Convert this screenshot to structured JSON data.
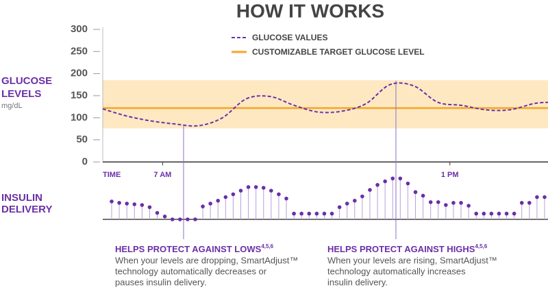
{
  "title": "HOW IT WORKS",
  "chart_data": [
    {
      "type": "line",
      "y_label": [
        "GLUCOSE",
        "LEVELS"
      ],
      "y_unit": "mg/dL",
      "x_label": "TIME",
      "x": [
        5.75,
        6.25,
        6.75,
        7.25,
        7.75,
        8.25,
        8.75,
        9.25,
        9.75,
        10.25,
        10.75,
        11.25,
        11.75,
        12.25,
        12.75,
        13.25,
        13.75,
        14.25,
        14.75,
        15.05
      ],
      "series": [
        {
          "name": "GLUCOSE VALUES",
          "color": "#6a2fa6",
          "values": [
            120,
            104,
            93,
            86,
            82,
            100,
            143,
            148,
            128,
            113,
            115,
            132,
            175,
            172,
            135,
            128,
            118,
            118,
            132,
            135
          ]
        }
      ],
      "target": {
        "name": "CUSTOMIZABLE TARGET GLUCOSE LEVEL",
        "color": "#f5a623",
        "value": 122
      },
      "target_range": {
        "color": "#fde8c2",
        "values": [
          76,
          185
        ]
      },
      "xlim": [
        5.75,
        15.05
      ],
      "xticks": [
        {
          "value": 7,
          "label": "7 AM"
        },
        {
          "value": 13,
          "label": "1 PM"
        }
      ],
      "ylim": [
        0,
        300
      ],
      "yticks": [
        0,
        50,
        100,
        150,
        200,
        250,
        300
      ]
    },
    {
      "type": "lollipop",
      "y_label": [
        "INSULIN",
        "DELIVERY"
      ],
      "color": "#6a2fa6",
      "ylim": [
        0,
        60
      ],
      "values": [
        25,
        23,
        22,
        21,
        20,
        17,
        9,
        4,
        0,
        0,
        0,
        0,
        18,
        22,
        26,
        31,
        35,
        40,
        45,
        45,
        44,
        40,
        35,
        29,
        8,
        8,
        8,
        8,
        8,
        8,
        17,
        22,
        26,
        32,
        41,
        48,
        53,
        57,
        57,
        50,
        38,
        33,
        24,
        24,
        20,
        23,
        23,
        19,
        8,
        8,
        8,
        8,
        8,
        8,
        23,
        23,
        31,
        31
      ]
    }
  ],
  "annotations": [
    {
      "title": "HELPS PROTECT AGAINST LOWS",
      "superscript": "4,5,6",
      "lines": [
        "When your levels are dropping, SmartAdjust™",
        "technology automatically decreases or",
        "pauses insulin delivery."
      ]
    },
    {
      "title": "HELPS PROTECT AGAINST HIGHS",
      "superscript": "4,5,6",
      "lines": [
        "When your levels are rising, SmartAdjust™",
        "technology automatically increases",
        "insulin delivery."
      ]
    }
  ]
}
